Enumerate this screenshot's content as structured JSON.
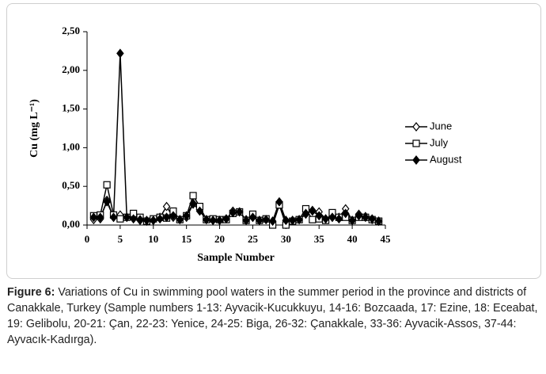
{
  "chart_data": {
    "type": "line",
    "x_label": "Sample Number",
    "y_label": "Cu (mg L⁻¹)",
    "x": [
      1,
      2,
      3,
      4,
      5,
      6,
      7,
      8,
      9,
      10,
      11,
      12,
      13,
      14,
      15,
      16,
      17,
      18,
      19,
      20,
      21,
      22,
      23,
      24,
      25,
      26,
      27,
      28,
      29,
      30,
      31,
      32,
      33,
      34,
      35,
      36,
      37,
      38,
      39,
      40,
      41,
      42,
      43,
      44
    ],
    "series": [
      {
        "name": "June",
        "color": "#000000",
        "marker": "diamond-open",
        "values": [
          0.07,
          0.08,
          0.32,
          0.1,
          0.13,
          0.1,
          0.1,
          0.06,
          0.05,
          0.06,
          0.1,
          0.24,
          0.1,
          0.07,
          0.1,
          0.27,
          0.2,
          0.07,
          0.06,
          0.06,
          0.08,
          0.18,
          0.17,
          0.07,
          0.1,
          0.06,
          0.07,
          0.05,
          0.27,
          0.06,
          0.06,
          0.07,
          0.14,
          0.19,
          0.17,
          0.08,
          0.1,
          0.1,
          0.21,
          0.06,
          0.14,
          0.11,
          0.07,
          0.05
        ]
      },
      {
        "name": "July",
        "color": "#000000",
        "marker": "square-open",
        "values": [
          0.12,
          0.13,
          0.52,
          0.13,
          0.08,
          0.1,
          0.15,
          0.1,
          0.05,
          0.08,
          0.1,
          0.09,
          0.18,
          0.07,
          0.12,
          0.38,
          0.24,
          0.07,
          0.08,
          0.07,
          0.07,
          0.15,
          0.17,
          0.06,
          0.14,
          0.06,
          0.08,
          0.0,
          0.26,
          0.0,
          0.05,
          0.07,
          0.21,
          0.07,
          0.08,
          0.06,
          0.16,
          0.1,
          0.1,
          0.06,
          0.1,
          0.1,
          0.07,
          0.05
        ]
      },
      {
        "name": "August",
        "color": "#000000",
        "marker": "diamond-filled",
        "values": [
          0.1,
          0.1,
          0.3,
          0.1,
          2.22,
          0.1,
          0.08,
          0.07,
          0.06,
          0.06,
          0.08,
          0.1,
          0.12,
          0.07,
          0.12,
          0.28,
          0.18,
          0.07,
          0.06,
          0.06,
          0.08,
          0.16,
          0.17,
          0.06,
          0.1,
          0.06,
          0.07,
          0.05,
          0.3,
          0.06,
          0.06,
          0.07,
          0.15,
          0.18,
          0.12,
          0.08,
          0.1,
          0.08,
          0.15,
          0.06,
          0.12,
          0.1,
          0.08,
          0.05
        ]
      }
    ],
    "xlim": [
      0,
      45
    ],
    "xticks": [
      0,
      5,
      10,
      15,
      20,
      25,
      30,
      35,
      40,
      45
    ],
    "ylim": [
      0,
      2.5
    ],
    "yticks": [
      {
        "value": 0,
        "label": "0,00"
      },
      {
        "value": 0.5,
        "label": "0,50"
      },
      {
        "value": 1,
        "label": "1,00"
      },
      {
        "value": 1.5,
        "label": "1,50"
      },
      {
        "value": 2,
        "label": "2,00"
      },
      {
        "value": 2.5,
        "label": "2,50"
      }
    ],
    "legend": "right"
  },
  "caption": {
    "label": "Figure 6:",
    "text": "Variations of Cu in swimming pool waters in the summer period in the province and districts of Canakkale, Turkey (Sample numbers 1-13: Ayvacik-Kucukkuyu, 14-16: Bozcaada, 17: Ezine, 18: Eceabat, 19: Gelibolu, 20-21: Çan, 22-23: Yenice, 24-25: Biga, 26-32: Çanakkale, 33-36: Ayvacik-Assos, 37-44: Ayvacık-Kadırga)."
  }
}
